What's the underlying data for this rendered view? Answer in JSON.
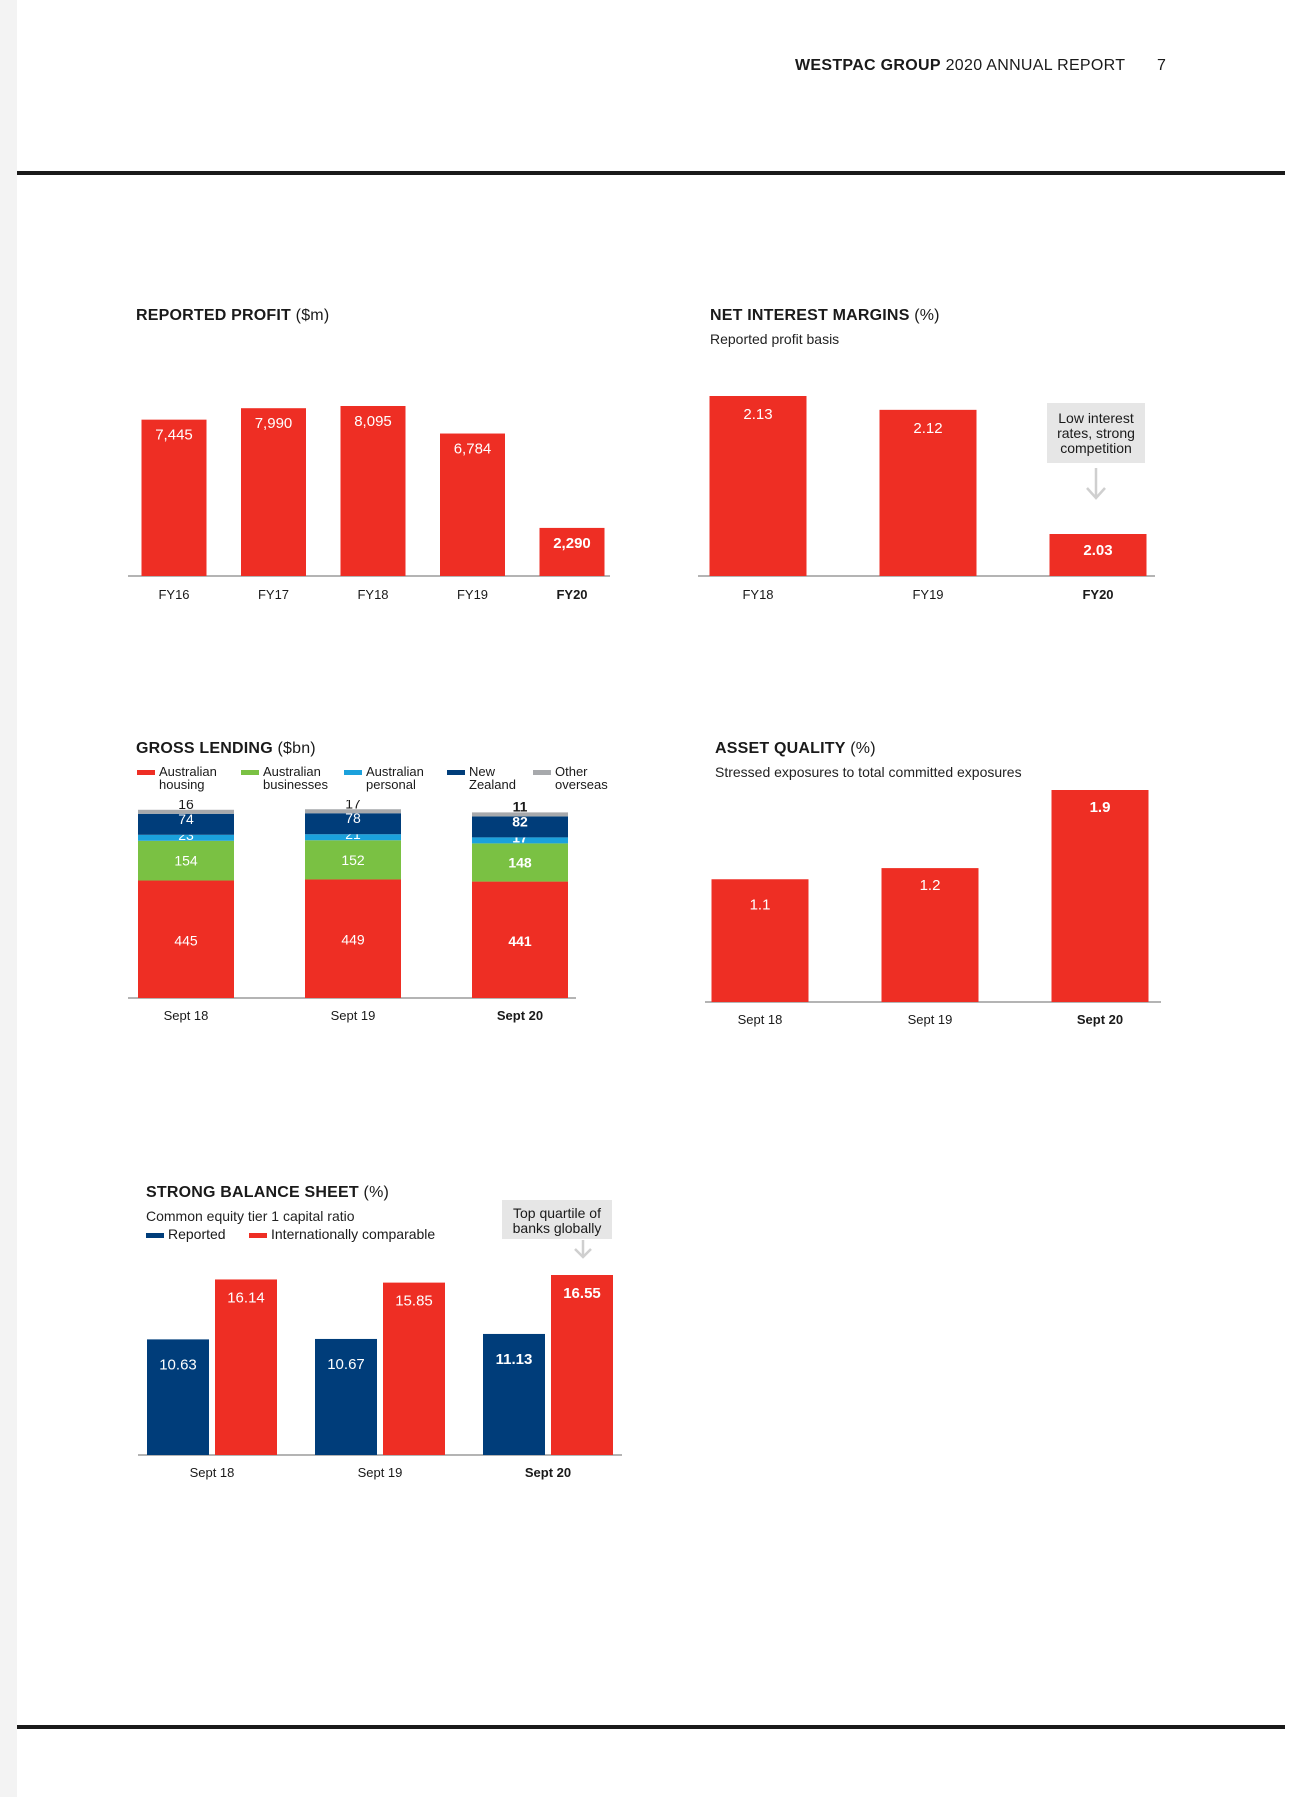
{
  "header": {
    "brand": "WESTPAC GROUP",
    "report": "2020 ANNUAL REPORT",
    "page_number": "7"
  },
  "colors": {
    "red": "#ee2e24",
    "green": "#7ac143",
    "cyan": "#1ba1dc",
    "navy": "#003d7a",
    "grey": "#a7a9ac",
    "axis": "#9b9b9b",
    "callout_bg": "#e6e6e6"
  },
  "panels": {
    "profit": {
      "title_bold": "REPORTED PROFIT",
      "title_unit": " ($m)"
    },
    "nim": {
      "title_bold": "NET INTEREST MARGINS",
      "title_unit": " (%)",
      "subtitle": "Reported profit basis",
      "callout": [
        "Low interest",
        "rates, strong",
        "competition"
      ]
    },
    "lending": {
      "title_bold": "GROSS LENDING",
      "title_unit": " ($bn)"
    },
    "asset": {
      "title_bold": "ASSET QUALITY",
      "title_unit": " (%)",
      "subtitle": "Stressed exposures to total committed exposures"
    },
    "balance": {
      "title_bold": "STRONG BALANCE SHEET",
      "title_unit": " (%)",
      "subtitle": "Common equity tier 1 capital ratio",
      "callout": [
        "Top quartile of",
        "banks globally"
      ]
    }
  },
  "chart_data": [
    {
      "id": "profit",
      "type": "bar",
      "title": "REPORTED PROFIT ($m)",
      "categories": [
        "FY16",
        "FY17",
        "FY18",
        "FY19",
        "FY20"
      ],
      "values": [
        7445,
        7990,
        8095,
        6784,
        2290
      ],
      "labels": [
        "7,445",
        "7,990",
        "8,095",
        "6,784",
        "2,290"
      ],
      "highlight_last": true,
      "ylim": [
        0,
        8500
      ]
    },
    {
      "id": "nim",
      "type": "bar",
      "title": "NET INTEREST MARGINS (%)",
      "categories": [
        "FY18",
        "FY19",
        "FY20"
      ],
      "values": [
        2.13,
        2.12,
        2.03
      ],
      "labels": [
        "2.13",
        "2.12",
        "2.03"
      ],
      "highlight_last": true
    },
    {
      "id": "lending",
      "type": "bar",
      "stacked": true,
      "title": "GROSS LENDING ($bn)",
      "categories": [
        "Sept 18",
        "Sept 19",
        "Sept 20"
      ],
      "series": [
        {
          "name": "Australian housing",
          "legend": [
            "Australian",
            "housing"
          ],
          "color": "#ee2e24",
          "values": [
            445,
            449,
            441
          ]
        },
        {
          "name": "Australian businesses",
          "legend": [
            "Australian",
            "businesses"
          ],
          "color": "#7ac143",
          "values": [
            154,
            152,
            148
          ]
        },
        {
          "name": "Australian personal",
          "legend": [
            "Australian",
            "personal"
          ],
          "color": "#1ba1dc",
          "values": [
            23,
            21,
            17
          ]
        },
        {
          "name": "New Zealand",
          "legend": [
            "New",
            "Zealand"
          ],
          "color": "#003d7a",
          "values": [
            74,
            78,
            82
          ]
        },
        {
          "name": "Other overseas",
          "legend": [
            "Other",
            "overseas"
          ],
          "color": "#a7a9ac",
          "values": [
            16,
            17,
            11
          ]
        }
      ],
      "highlight_last": true
    },
    {
      "id": "asset",
      "type": "bar",
      "title": "ASSET QUALITY (%)",
      "categories": [
        "Sept 18",
        "Sept 19",
        "Sept 20"
      ],
      "values": [
        1.1,
        1.2,
        1.9
      ],
      "labels": [
        "1.1",
        "1.2",
        "1.9"
      ],
      "highlight_last": true,
      "ylim": [
        0,
        1.9
      ]
    },
    {
      "id": "balance",
      "type": "bar",
      "title": "STRONG BALANCE SHEET (%)",
      "categories": [
        "Sept 18",
        "Sept 19",
        "Sept 20"
      ],
      "series": [
        {
          "name": "Reported",
          "color": "#003d7a",
          "values": [
            10.63,
            10.67,
            11.13
          ],
          "labels": [
            "10.63",
            "10.67",
            "11.13"
          ]
        },
        {
          "name": "Internationally comparable",
          "color": "#ee2e24",
          "values": [
            16.14,
            15.85,
            16.55
          ],
          "labels": [
            "16.14",
            "15.85",
            "16.55"
          ]
        }
      ],
      "highlight_last": true
    }
  ]
}
